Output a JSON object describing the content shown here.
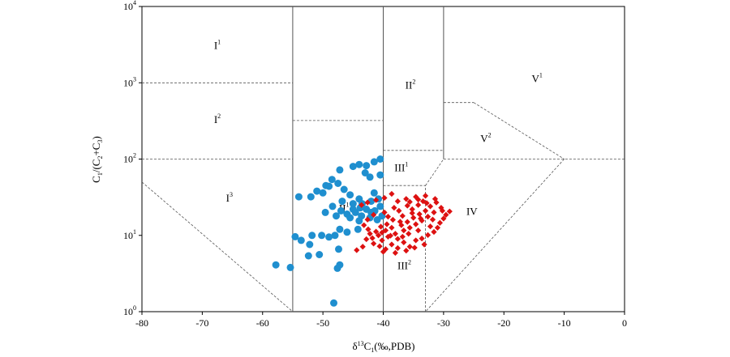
{
  "chart_data": {
    "type": "scatter",
    "xlabel": "δ13C1(‰,PDB)",
    "xlabel_parts": {
      "delta": "δ",
      "sup": "13",
      "base": "C",
      "sub": "1",
      "rest": "(‰,PDB)"
    },
    "ylabel_parts": [
      "C",
      "1",
      "/(C",
      "2",
      "+C",
      "3",
      ")"
    ],
    "xlim": [
      -80,
      0
    ],
    "ylim": [
      1,
      10000
    ],
    "yscale": "log",
    "x_ticks": [
      "-80",
      "-70",
      "-60",
      "-50",
      "-40",
      "-30",
      "-20",
      "-10",
      "0"
    ],
    "x_tick_values": [
      -80,
      -70,
      -60,
      -50,
      -40,
      -30,
      -20,
      -10,
      0
    ],
    "y_ticks": [
      {
        "value": 1,
        "base": "10",
        "exp": "0"
      },
      {
        "value": 10,
        "base": "10",
        "exp": "1"
      },
      {
        "value": 100,
        "base": "10",
        "exp": "2"
      },
      {
        "value": 1000,
        "base": "10",
        "exp": "3"
      },
      {
        "value": 10000,
        "base": "10",
        "exp": "4"
      }
    ],
    "grid": false,
    "colors": {
      "blue": "#1f8fcf",
      "red": "#dd1111"
    },
    "regions": [
      {
        "name": "region-i1",
        "base": "I",
        "sup": "1",
        "x": -67.5,
        "y": 3000
      },
      {
        "name": "region-i2",
        "base": "I",
        "sup": "2",
        "x": -67.5,
        "y": 320
      },
      {
        "name": "region-i3",
        "base": "I",
        "sup": "3",
        "x": -65.5,
        "y": 30
      },
      {
        "name": "region-ii1",
        "base": "II",
        "sup": "1",
        "x": -46.5,
        "y": 22
      },
      {
        "name": "region-ii2",
        "base": "II",
        "sup": "2",
        "x": -35.5,
        "y": 900
      },
      {
        "name": "region-iii1",
        "base": "III",
        "sup": "1",
        "x": -37,
        "y": 75
      },
      {
        "name": "region-iii2",
        "base": "III",
        "sup": "2",
        "x": -36.5,
        "y": 3.9
      },
      {
        "name": "region-iv",
        "base": "IV",
        "sup": "",
        "x": -25.3,
        "y": 20
      },
      {
        "name": "region-v1",
        "base": "V",
        "sup": "1",
        "x": -14.5,
        "y": 1100
      },
      {
        "name": "region-v2",
        "base": "V",
        "sup": "2",
        "x": -23,
        "y": 180
      }
    ],
    "boundaries": [
      {
        "style": "solid",
        "points": [
          [
            -55,
            1
          ],
          [
            -55,
            10000
          ]
        ]
      },
      {
        "style": "solid",
        "points": [
          [
            -40,
            1
          ],
          [
            -40,
            10000
          ]
        ]
      },
      {
        "style": "solid",
        "points": [
          [
            -30,
            100
          ],
          [
            -30,
            10000
          ]
        ]
      },
      {
        "style": "dash",
        "points": [
          [
            -80,
            1000
          ],
          [
            -55,
            1000
          ]
        ]
      },
      {
        "style": "dash",
        "points": [
          [
            -80,
            100
          ],
          [
            -55,
            100
          ]
        ]
      },
      {
        "style": "dash",
        "points": [
          [
            -55,
            320
          ],
          [
            -40,
            320
          ]
        ]
      },
      {
        "style": "dash",
        "points": [
          [
            -40,
            130
          ],
          [
            -30,
            130
          ]
        ]
      },
      {
        "style": "dash",
        "points": [
          [
            -40,
            45
          ],
          [
            -33,
            45
          ]
        ]
      },
      {
        "style": "dash",
        "points": [
          [
            -33,
            1
          ],
          [
            -33,
            45
          ]
        ]
      },
      {
        "style": "dash",
        "points": [
          [
            -80,
            50
          ],
          [
            -55,
            1
          ]
        ]
      },
      {
        "style": "dash",
        "points": [
          [
            -33,
            45
          ],
          [
            -30,
            100
          ]
        ]
      },
      {
        "style": "dash",
        "points": [
          [
            -30,
            100
          ],
          [
            0,
            100
          ]
        ]
      },
      {
        "style": "dash",
        "points": [
          [
            -30,
            550
          ],
          [
            -25,
            550
          ]
        ]
      },
      {
        "style": "dash",
        "points": [
          [
            -25,
            550
          ],
          [
            -10,
            100
          ]
        ]
      },
      {
        "style": "dash",
        "points": [
          [
            -10,
            100
          ],
          [
            -33,
            1
          ]
        ]
      }
    ],
    "series": [
      {
        "marker": "circle",
        "color": "#1f8fcf",
        "points": [
          [
            -40.5,
            100
          ],
          [
            -41.5,
            92
          ],
          [
            -42.8,
            82
          ],
          [
            -44,
            85
          ],
          [
            -45,
            80
          ],
          [
            -47.2,
            72
          ],
          [
            -40.5,
            62
          ],
          [
            -42.2,
            58
          ],
          [
            -43,
            66
          ],
          [
            -48.5,
            54
          ],
          [
            -46.5,
            40
          ],
          [
            -47.5,
            48
          ],
          [
            -49.5,
            45
          ],
          [
            -51,
            38
          ],
          [
            -52,
            32
          ],
          [
            -54,
            32
          ],
          [
            -50,
            36
          ],
          [
            -49,
            44
          ],
          [
            -45.5,
            34
          ],
          [
            -44,
            30
          ],
          [
            -43.5,
            26
          ],
          [
            -42,
            28
          ],
          [
            -41.5,
            36
          ],
          [
            -40.8,
            30
          ],
          [
            -46.8,
            28
          ],
          [
            -45,
            22
          ],
          [
            -44.6,
            20
          ],
          [
            -43.6,
            18
          ],
          [
            -42.8,
            22
          ],
          [
            -42,
            20
          ],
          [
            -41.4,
            21
          ],
          [
            -40.5,
            24
          ],
          [
            -46,
            19
          ],
          [
            -45.5,
            17
          ],
          [
            -44,
            15.5
          ],
          [
            -47,
            21
          ],
          [
            -47.8,
            18
          ],
          [
            -45,
            26
          ],
          [
            -43.8,
            23
          ],
          [
            -42.2,
            17
          ],
          [
            -41,
            16
          ],
          [
            -40.2,
            18
          ],
          [
            -48.4,
            24
          ],
          [
            -49.6,
            20
          ],
          [
            -44.2,
            12
          ],
          [
            -47.2,
            12
          ],
          [
            -46,
            11
          ],
          [
            -48,
            10
          ],
          [
            -49,
            9.5
          ],
          [
            -50.2,
            10
          ],
          [
            -51.8,
            10
          ],
          [
            -52.2,
            7.6
          ],
          [
            -53.6,
            8.6
          ],
          [
            -54.6,
            9.6
          ],
          [
            -50.6,
            5.6
          ],
          [
            -52.4,
            5.4
          ],
          [
            -55.4,
            3.8
          ],
          [
            -57.8,
            4.1
          ],
          [
            -47.4,
            6.6
          ],
          [
            -47.2,
            4.1
          ],
          [
            -47.6,
            3.7
          ],
          [
            -48.2,
            1.3
          ]
        ]
      },
      {
        "marker": "diamond",
        "color": "#dd1111",
        "points": [
          [
            -42.5,
            12
          ],
          [
            -42.2,
            10.5
          ],
          [
            -41.8,
            9.2
          ],
          [
            -41.2,
            11.2
          ],
          [
            -40.8,
            10
          ],
          [
            -40.2,
            8.6
          ],
          [
            -39.6,
            11.6
          ],
          [
            -39.2,
            9.6
          ],
          [
            -38.6,
            12.6
          ],
          [
            -38,
            10.5
          ],
          [
            -37.6,
            9
          ],
          [
            -37,
            13.6
          ],
          [
            -36.6,
            11.6
          ],
          [
            -36,
            15
          ],
          [
            -35.6,
            12.6
          ],
          [
            -35,
            17
          ],
          [
            -34.6,
            14
          ],
          [
            -34,
            19
          ],
          [
            -33.6,
            15.6
          ],
          [
            -33,
            21
          ],
          [
            -32.6,
            17.6
          ],
          [
            -32.2,
            24
          ],
          [
            -31.6,
            20
          ],
          [
            -31.2,
            27
          ],
          [
            -36.8,
            18
          ],
          [
            -35.2,
            22
          ],
          [
            -34.2,
            25
          ],
          [
            -33.4,
            28
          ],
          [
            -37.4,
            21
          ],
          [
            -38.4,
            16
          ],
          [
            -39.4,
            14
          ],
          [
            -40.4,
            13
          ],
          [
            -41.6,
            7.8
          ],
          [
            -40.6,
            7.2
          ],
          [
            -39.6,
            6.6
          ],
          [
            -38.6,
            7.6
          ],
          [
            -37.6,
            6.8
          ],
          [
            -36.6,
            8.1
          ],
          [
            -35.6,
            7.1
          ],
          [
            -34.6,
            8.6
          ],
          [
            -33.6,
            9.1
          ],
          [
            -32.6,
            10.1
          ],
          [
            -31.6,
            11.1
          ],
          [
            -31,
            12.6
          ],
          [
            -30.6,
            14.6
          ],
          [
            -30,
            16.6
          ],
          [
            -29.6,
            18.6
          ],
          [
            -29,
            20.6
          ],
          [
            -30.4,
            23
          ],
          [
            -31.4,
            30
          ],
          [
            -33,
            33
          ],
          [
            -34.6,
            32
          ],
          [
            -36.2,
            30
          ],
          [
            -37.6,
            28
          ],
          [
            -38.6,
            35
          ],
          [
            -39.8,
            31
          ],
          [
            -41.2,
            29
          ],
          [
            -42.6,
            27
          ],
          [
            -43.6,
            25
          ],
          [
            -43.2,
            13.6
          ],
          [
            -42.8,
            8.9
          ],
          [
            -44.4,
            6.4
          ],
          [
            -43.4,
            7.1
          ],
          [
            -40,
            6.1
          ],
          [
            -38,
            5.9
          ],
          [
            -36.2,
            6.3
          ],
          [
            -34.8,
            6.9
          ],
          [
            -33.2,
            7.6
          ],
          [
            -35.8,
            10.5
          ],
          [
            -36.8,
            9.6
          ],
          [
            -38.8,
            9.9
          ],
          [
            -40.2,
            10.9
          ],
          [
            -34.2,
            11.6
          ],
          [
            -32.2,
            13.1
          ],
          [
            -33.8,
            16.6
          ],
          [
            -35.2,
            19.6
          ],
          [
            -36,
            24.5
          ],
          [
            -38.2,
            23
          ],
          [
            -39.8,
            20
          ],
          [
            -41.6,
            18.6
          ],
          [
            -42.6,
            16.1
          ],
          [
            -37.2,
            15.1
          ],
          [
            -39.2,
            17.6
          ],
          [
            -31.8,
            16.1
          ],
          [
            -30.2,
            21
          ],
          [
            -32.8,
            26.5
          ],
          [
            -34.2,
            29.5
          ],
          [
            -35.6,
            27.5
          ]
        ]
      }
    ]
  }
}
